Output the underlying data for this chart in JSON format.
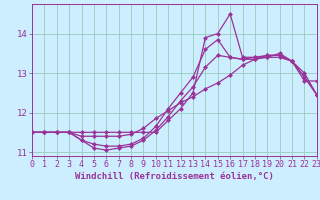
{
  "xlabel": "Windchill (Refroidissement éolien,°C)",
  "bg_color": "#cceeff",
  "line_color": "#993399",
  "grid_color": "#99ccbb",
  "x_hours": [
    0,
    1,
    2,
    3,
    4,
    5,
    6,
    7,
    8,
    9,
    10,
    11,
    12,
    13,
    14,
    15,
    16,
    17,
    18,
    19,
    20,
    21,
    22,
    23
  ],
  "series": [
    [
      11.5,
      11.5,
      11.5,
      11.5,
      11.5,
      11.5,
      11.5,
      11.5,
      11.5,
      11.5,
      11.5,
      11.8,
      12.1,
      12.5,
      13.9,
      14.0,
      14.5,
      13.4,
      13.4,
      13.4,
      13.5,
      13.3,
      12.8,
      12.8
    ],
    [
      11.5,
      11.5,
      11.5,
      11.5,
      11.3,
      11.2,
      11.15,
      11.15,
      11.2,
      11.35,
      11.65,
      12.1,
      12.5,
      12.9,
      13.6,
      13.85,
      13.4,
      13.35,
      13.4,
      13.45,
      13.45,
      13.3,
      12.9,
      12.45
    ],
    [
      11.5,
      11.5,
      11.5,
      11.5,
      11.3,
      11.1,
      11.05,
      11.1,
      11.15,
      11.3,
      11.55,
      11.9,
      12.3,
      12.65,
      13.15,
      13.45,
      13.4,
      13.35,
      13.35,
      13.4,
      13.4,
      13.3,
      12.9,
      12.45
    ],
    [
      11.5,
      11.5,
      11.5,
      11.5,
      11.4,
      11.4,
      11.4,
      11.4,
      11.45,
      11.6,
      11.85,
      12.05,
      12.25,
      12.4,
      12.6,
      12.75,
      12.95,
      13.2,
      13.35,
      13.45,
      13.45,
      13.3,
      13.0,
      12.45
    ]
  ],
  "xlim": [
    0,
    23
  ],
  "ylim": [
    10.9,
    14.75
  ],
  "ytick_positions": [
    11,
    12,
    13,
    14
  ],
  "grid_lw": 0.6,
  "line_lw": 0.9,
  "marker": "D",
  "markersize": 2.0,
  "xlabel_fontsize": 6.5,
  "tick_fontsize": 6.0,
  "fig_width": 3.2,
  "fig_height": 2.0,
  "dpi": 100
}
